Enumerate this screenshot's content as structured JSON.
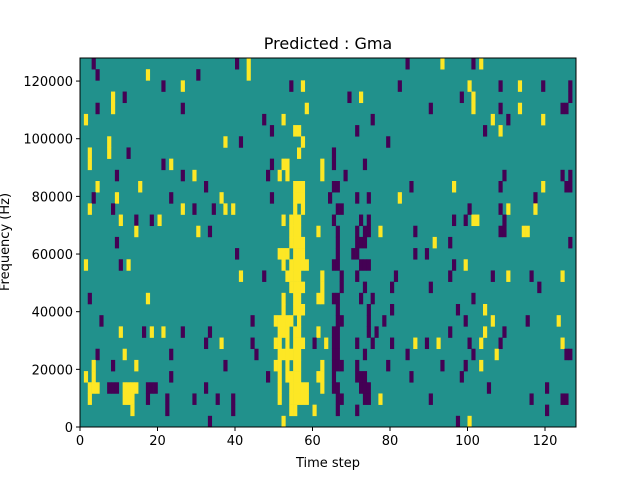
{
  "chart_data": {
    "type": "heatmap",
    "title": "Predicted : Gma",
    "xlabel": "Time step",
    "ylabel": "Frequency (Hz)",
    "xlim": [
      0,
      128
    ],
    "ylim": [
      0,
      128000
    ],
    "x_ticks": [
      0,
      20,
      40,
      60,
      80,
      100,
      120
    ],
    "y_ticks": [
      0,
      20000,
      40000,
      60000,
      80000,
      100000,
      120000
    ],
    "n_time_steps": 128,
    "n_freq_bins": 33,
    "rows_order": "high-to-low frequency",
    "colors": {
      "background": "#21918c",
      "purple": "#440154",
      "yellow": "#fde725"
    },
    "grid": false,
    "rows": [
      {
        "p": [
          3,
          40,
          84,
          101
        ],
        "y": [
          43,
          93,
          103
        ]
      },
      {
        "p": [
          4,
          30
        ],
        "y": [
          17,
          43
        ]
      },
      {
        "p": [
          21,
          54,
          82,
          108,
          119,
          126
        ],
        "y": [
          26,
          57,
          100,
          113
        ]
      },
      {
        "p": [
          11,
          69,
          98,
          126
        ],
        "y": [
          8,
          72,
          101
        ]
      },
      {
        "p": [
          4,
          26,
          90,
          108,
          124,
          125
        ],
        "y": [
          8,
          58,
          101,
          113
        ]
      },
      {
        "p": [
          47,
          75,
          110
        ],
        "y": [
          1,
          52,
          106,
          119
        ]
      },
      {
        "p": [
          49,
          71,
          104
        ],
        "y": [
          55,
          56,
          108
        ]
      },
      {
        "p": [
          41,
          79
        ],
        "y": [
          7,
          37,
          57
        ]
      },
      {
        "p": [
          12,
          65
        ],
        "y": [
          2,
          7,
          56
        ]
      },
      {
        "p": [
          21,
          49,
          65,
          73
        ],
        "y": [
          2,
          23,
          52,
          53,
          62
        ]
      },
      {
        "p": [
          9,
          26,
          48,
          68,
          109,
          124,
          126
        ],
        "y": [
          29,
          51,
          53,
          62
        ]
      },
      {
        "p": [
          32,
          65,
          66,
          85,
          108,
          125,
          126
        ],
        "y": [
          4,
          15,
          55,
          56,
          57,
          96,
          119
        ]
      },
      {
        "p": [
          3,
          23,
          49,
          64,
          71,
          74,
          117
        ],
        "y": [
          9,
          36,
          55,
          56,
          57,
          82
        ]
      },
      {
        "p": [
          8,
          29,
          34,
          66,
          67,
          100,
          108
        ],
        "y": [
          2,
          26,
          37,
          39,
          55,
          57,
          110,
          117
        ]
      },
      {
        "p": [
          14,
          18,
          65,
          72,
          74,
          96,
          99,
          109
        ],
        "y": [
          10,
          20,
          52,
          54,
          55,
          56,
          101,
          102
        ]
      },
      {
        "p": [
          33,
          66,
          71,
          73,
          74,
          86,
          108,
          109
        ],
        "y": [
          14,
          30,
          54,
          55,
          56,
          61,
          77,
          114,
          115
        ]
      },
      {
        "p": [
          9,
          66,
          71,
          72,
          73,
          95,
          126
        ],
        "y": [
          54,
          55,
          56,
          57,
          91
        ]
      },
      {
        "p": [
          40,
          66,
          70,
          71,
          86,
          89
        ],
        "y": [
          51,
          52,
          53,
          55,
          56,
          57
        ]
      },
      {
        "p": [
          10,
          65,
          66,
          72,
          73,
          74,
          96
        ],
        "y": [
          1,
          12,
          52,
          54,
          55,
          56,
          57,
          58,
          99
        ]
      },
      {
        "p": [
          47,
          67,
          71,
          81,
          95,
          106,
          116
        ],
        "y": [
          41,
          53,
          54,
          55,
          56,
          62,
          110,
          124
        ]
      },
      {
        "p": [
          67,
          73,
          80,
          90,
          118
        ],
        "y": [
          54,
          55,
          56,
          57,
          62
        ]
      },
      {
        "p": [
          2,
          65,
          66,
          72,
          75,
          101
        ],
        "y": [
          17,
          52,
          55,
          56,
          61,
          62
        ]
      },
      {
        "p": [
          66,
          74,
          80,
          97
        ],
        "y": [
          52,
          55,
          56,
          57,
          104
        ]
      },
      {
        "p": [
          5,
          44,
          66,
          67,
          74,
          78,
          99,
          115
        ],
        "y": [
          50,
          51,
          52,
          53,
          54,
          56,
          106,
          123
        ]
      },
      {
        "p": [
          16,
          26,
          33,
          65,
          66,
          74,
          76,
          95,
          109
        ],
        "y": [
          10,
          18,
          21,
          51,
          52,
          53,
          55,
          56,
          61,
          104
        ]
      },
      {
        "p": [
          32,
          44,
          60,
          65,
          66,
          71,
          75,
          80,
          89,
          100,
          108
        ],
        "y": [
          36,
          50,
          51,
          53,
          55,
          56,
          57,
          63,
          86,
          92,
          103,
          124
        ]
      },
      {
        "p": [
          4,
          23,
          45,
          65,
          66,
          73,
          84,
          101,
          125,
          126
        ],
        "y": [
          11,
          51,
          52,
          53,
          54,
          55,
          56,
          107
        ]
      },
      {
        "p": [
          8,
          37,
          65,
          66,
          67,
          71,
          79,
          93,
          99
        ],
        "y": [
          3,
          14,
          50,
          51,
          53,
          55,
          56,
          62,
          103
        ]
      },
      {
        "p": [
          23,
          48,
          65,
          71,
          72,
          73,
          85,
          98
        ],
        "y": [
          1,
          3,
          51,
          53,
          54,
          55,
          56,
          61,
          62
        ]
      },
      {
        "p": [
          7,
          8,
          9,
          17,
          18,
          19,
          32,
          65,
          66,
          72,
          73,
          74,
          105,
          120
        ],
        "y": [
          2,
          3,
          4,
          11,
          12,
          13,
          14,
          51,
          54,
          55,
          56,
          57,
          58,
          62
        ]
      },
      {
        "p": [
          17,
          22,
          29,
          35,
          39,
          66,
          67,
          73,
          74,
          90,
          116,
          124,
          125
        ],
        "y": [
          2,
          11,
          12,
          13,
          51,
          54,
          55,
          56,
          57,
          58,
          77
        ]
      },
      {
        "p": [
          22,
          39,
          66,
          71,
          120
        ],
        "y": [
          13,
          54,
          55,
          60
        ]
      },
      {
        "p": [
          33,
          97
        ],
        "y": [
          52,
          100
        ]
      }
    ]
  }
}
